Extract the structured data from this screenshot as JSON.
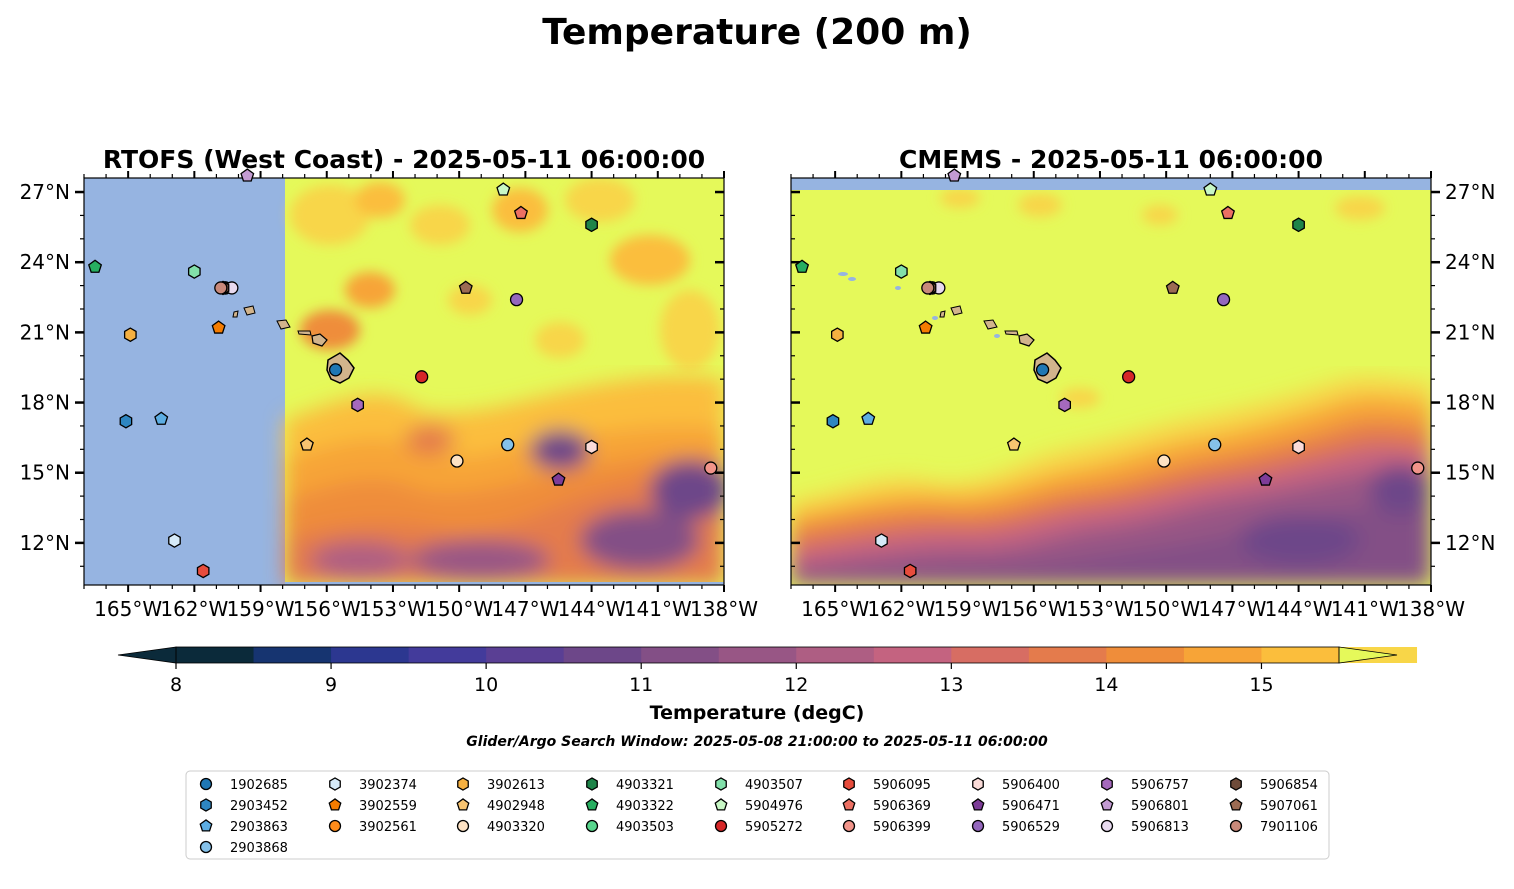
{
  "suptitle": "Temperature (200 m)",
  "panels": [
    {
      "title": "RTOFS (West Coast) - 2025-05-11 06:00:00",
      "model": "RTOFS",
      "data_lon_min": -157.3
    },
    {
      "title": "CMEMS - 2025-05-11 06:00:00",
      "model": "CMEMS",
      "data_lat_max": 27.1
    }
  ],
  "map_extent": {
    "lon_min": -167.0,
    "lon_max": -138.0,
    "lat_min": 10.2,
    "lat_max": 27.6
  },
  "x_ticks": [
    "165°W",
    "162°W",
    "159°W",
    "156°W",
    "153°W",
    "150°W",
    "147°W",
    "144°W",
    "141°W",
    "138°W"
  ],
  "x_tick_values": [
    -165,
    -162,
    -159,
    -156,
    -153,
    -150,
    -147,
    -144,
    -141,
    -138
  ],
  "y_ticks": [
    "12°N",
    "15°N",
    "18°N",
    "21°N",
    "24°N",
    "27°N"
  ],
  "y_tick_values": [
    12,
    15,
    18,
    21,
    24,
    27
  ],
  "colorbar": {
    "label": "Temperature (degC)",
    "ticks": [
      "8",
      "9",
      "10",
      "11",
      "12",
      "13",
      "14",
      "15"
    ],
    "tick_values": [
      8,
      9,
      10,
      11,
      12,
      13,
      14,
      15
    ],
    "min": 8.0,
    "max": 15.5,
    "step": 0.5,
    "extend": "both",
    "colors": [
      "#0b2a3a",
      "#163470",
      "#2c3790",
      "#433b9b",
      "#5a3f94",
      "#6d4789",
      "#834f86",
      "#985685",
      "#ae5e83",
      "#c46380",
      "#d76d63",
      "#e47b4c",
      "#ef8d3a",
      "#f7a437",
      "#fbbe3c",
      "#f8d648"
    ],
    "under_color": "#0b2a3a",
    "over_color": "#e5f95a",
    "land_color": "#d2b48c",
    "nodata_color": "#96b4e1"
  },
  "search_window": "Glider/Argo Search Window: 2025-05-08 21:00:00 to 2025-05-11 06:00:00",
  "platforms": [
    {
      "id": "1902685",
      "color": "#1f77b4",
      "marker": "circle",
      "lon": -155.6,
      "lat": 19.4
    },
    {
      "id": "2903452",
      "color": "#2e86c1",
      "marker": "hexagon",
      "lon": -165.1,
      "lat": 17.2
    },
    {
      "id": "2903863",
      "color": "#5dade2",
      "marker": "pentagon",
      "lon": -163.5,
      "lat": 17.3
    },
    {
      "id": "2903868",
      "color": "#85c1e9",
      "marker": "circle",
      "lon": -147.8,
      "lat": 16.2
    },
    {
      "id": "3902374",
      "color": "#d6eaf8",
      "marker": "hexagon",
      "lon": -162.9,
      "lat": 12.1
    },
    {
      "id": "3902559",
      "color": "#f57c00",
      "marker": "pentagon",
      "lon": -160.9,
      "lat": 21.2
    },
    {
      "id": "3902561",
      "color": "#ff8c1a",
      "marker": "circle",
      "lon": -160.6,
      "lat": 22.9
    },
    {
      "id": "3902613",
      "color": "#f5b041",
      "marker": "hexagon",
      "lon": -164.9,
      "lat": 20.9
    },
    {
      "id": "4902948",
      "color": "#f8c471",
      "marker": "pentagon",
      "lon": -156.9,
      "lat": 16.2
    },
    {
      "id": "4903320",
      "color": "#fde2c4",
      "marker": "circle",
      "lon": -150.1,
      "lat": 15.5
    },
    {
      "id": "4903321",
      "color": "#1e8449",
      "marker": "hexagon",
      "lon": -144.0,
      "lat": 25.6
    },
    {
      "id": "4903322",
      "color": "#27ae60",
      "marker": "pentagon",
      "lon": -166.5,
      "lat": 23.8
    },
    {
      "id": "4903503",
      "color": "#58d68d",
      "marker": "circle",
      "lon": -160.6,
      "lat": 22.9
    },
    {
      "id": "4903507",
      "color": "#82e0aa",
      "marker": "hexagon",
      "lon": -162.0,
      "lat": 23.6
    },
    {
      "id": "5904976",
      "color": "#c8f7c5",
      "marker": "pentagon",
      "lon": -148.0,
      "lat": 27.1
    },
    {
      "id": "5905272",
      "color": "#d62728",
      "marker": "circle",
      "lon": -151.7,
      "lat": 19.1
    },
    {
      "id": "5906095",
      "color": "#e74c3c",
      "marker": "hexagon",
      "lon": -161.6,
      "lat": 10.8
    },
    {
      "id": "5906369",
      "color": "#ec7063",
      "marker": "pentagon",
      "lon": -147.2,
      "lat": 26.1
    },
    {
      "id": "5906399",
      "color": "#f1948a",
      "marker": "circle",
      "lon": -138.6,
      "lat": 15.2
    },
    {
      "id": "5906400",
      "color": "#fadbd8",
      "marker": "hexagon",
      "lon": -144.0,
      "lat": 16.1
    },
    {
      "id": "5906471",
      "color": "#7d3c98",
      "marker": "pentagon",
      "lon": -145.5,
      "lat": 14.7
    },
    {
      "id": "5906529",
      "color": "#9467bd",
      "marker": "circle",
      "lon": -147.4,
      "lat": 22.4
    },
    {
      "id": "5906757",
      "color": "#a569bd",
      "marker": "hexagon",
      "lon": -154.6,
      "lat": 17.9
    },
    {
      "id": "5906801",
      "color": "#c39bd3",
      "marker": "pentagon",
      "lon": -159.6,
      "lat": 27.7
    },
    {
      "id": "5906813",
      "color": "#e8daef",
      "marker": "circle",
      "lon": -160.3,
      "lat": 22.9
    },
    {
      "id": "5906854",
      "color": "#6e4b3a",
      "marker": "hexagon",
      "lon": -160.7,
      "lat": 22.9
    },
    {
      "id": "5907061",
      "color": "#9c6b53",
      "marker": "pentagon",
      "lon": -149.7,
      "lat": 22.9
    },
    {
      "id": "7901106",
      "color": "#c9897a",
      "marker": "circle",
      "lon": -160.8,
      "lat": 22.9
    }
  ]
}
